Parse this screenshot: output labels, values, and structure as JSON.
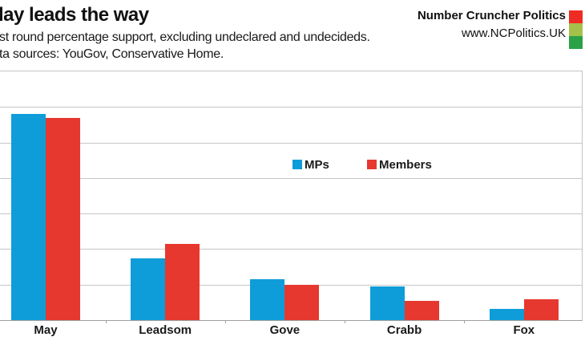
{
  "header": {
    "title": "lay leads the way",
    "subtitle": "st round percentage support, excluding undeclared and undecideds.",
    "sources": "ta sources: YouGov, Conservative Home."
  },
  "brand": {
    "name": "Number Cruncher Politics",
    "url": "www.NCPolitics.UK",
    "logo_colors": [
      "#ee2b24",
      "#a6c04c",
      "#2aa147"
    ]
  },
  "chart_data": {
    "type": "bar",
    "title": "lay leads the way",
    "categories": [
      "May",
      "Leadsom",
      "Gove",
      "Crabb",
      "Fox"
    ],
    "series": [
      {
        "name": "MPs",
        "color": "#0f9dd9",
        "values": [
          58,
          17.5,
          11.5,
          9.5,
          3.2
        ]
      },
      {
        "name": "Members",
        "color": "#e6382e",
        "values": [
          57,
          21.5,
          10.0,
          5.4,
          5.9
        ]
      }
    ],
    "xlabel": "",
    "ylabel": "",
    "ylim": [
      0,
      70
    ],
    "gridline_interval": 10,
    "grid": true,
    "legend_position": "inside-center-right",
    "axis_labels_visible": "x-only"
  }
}
